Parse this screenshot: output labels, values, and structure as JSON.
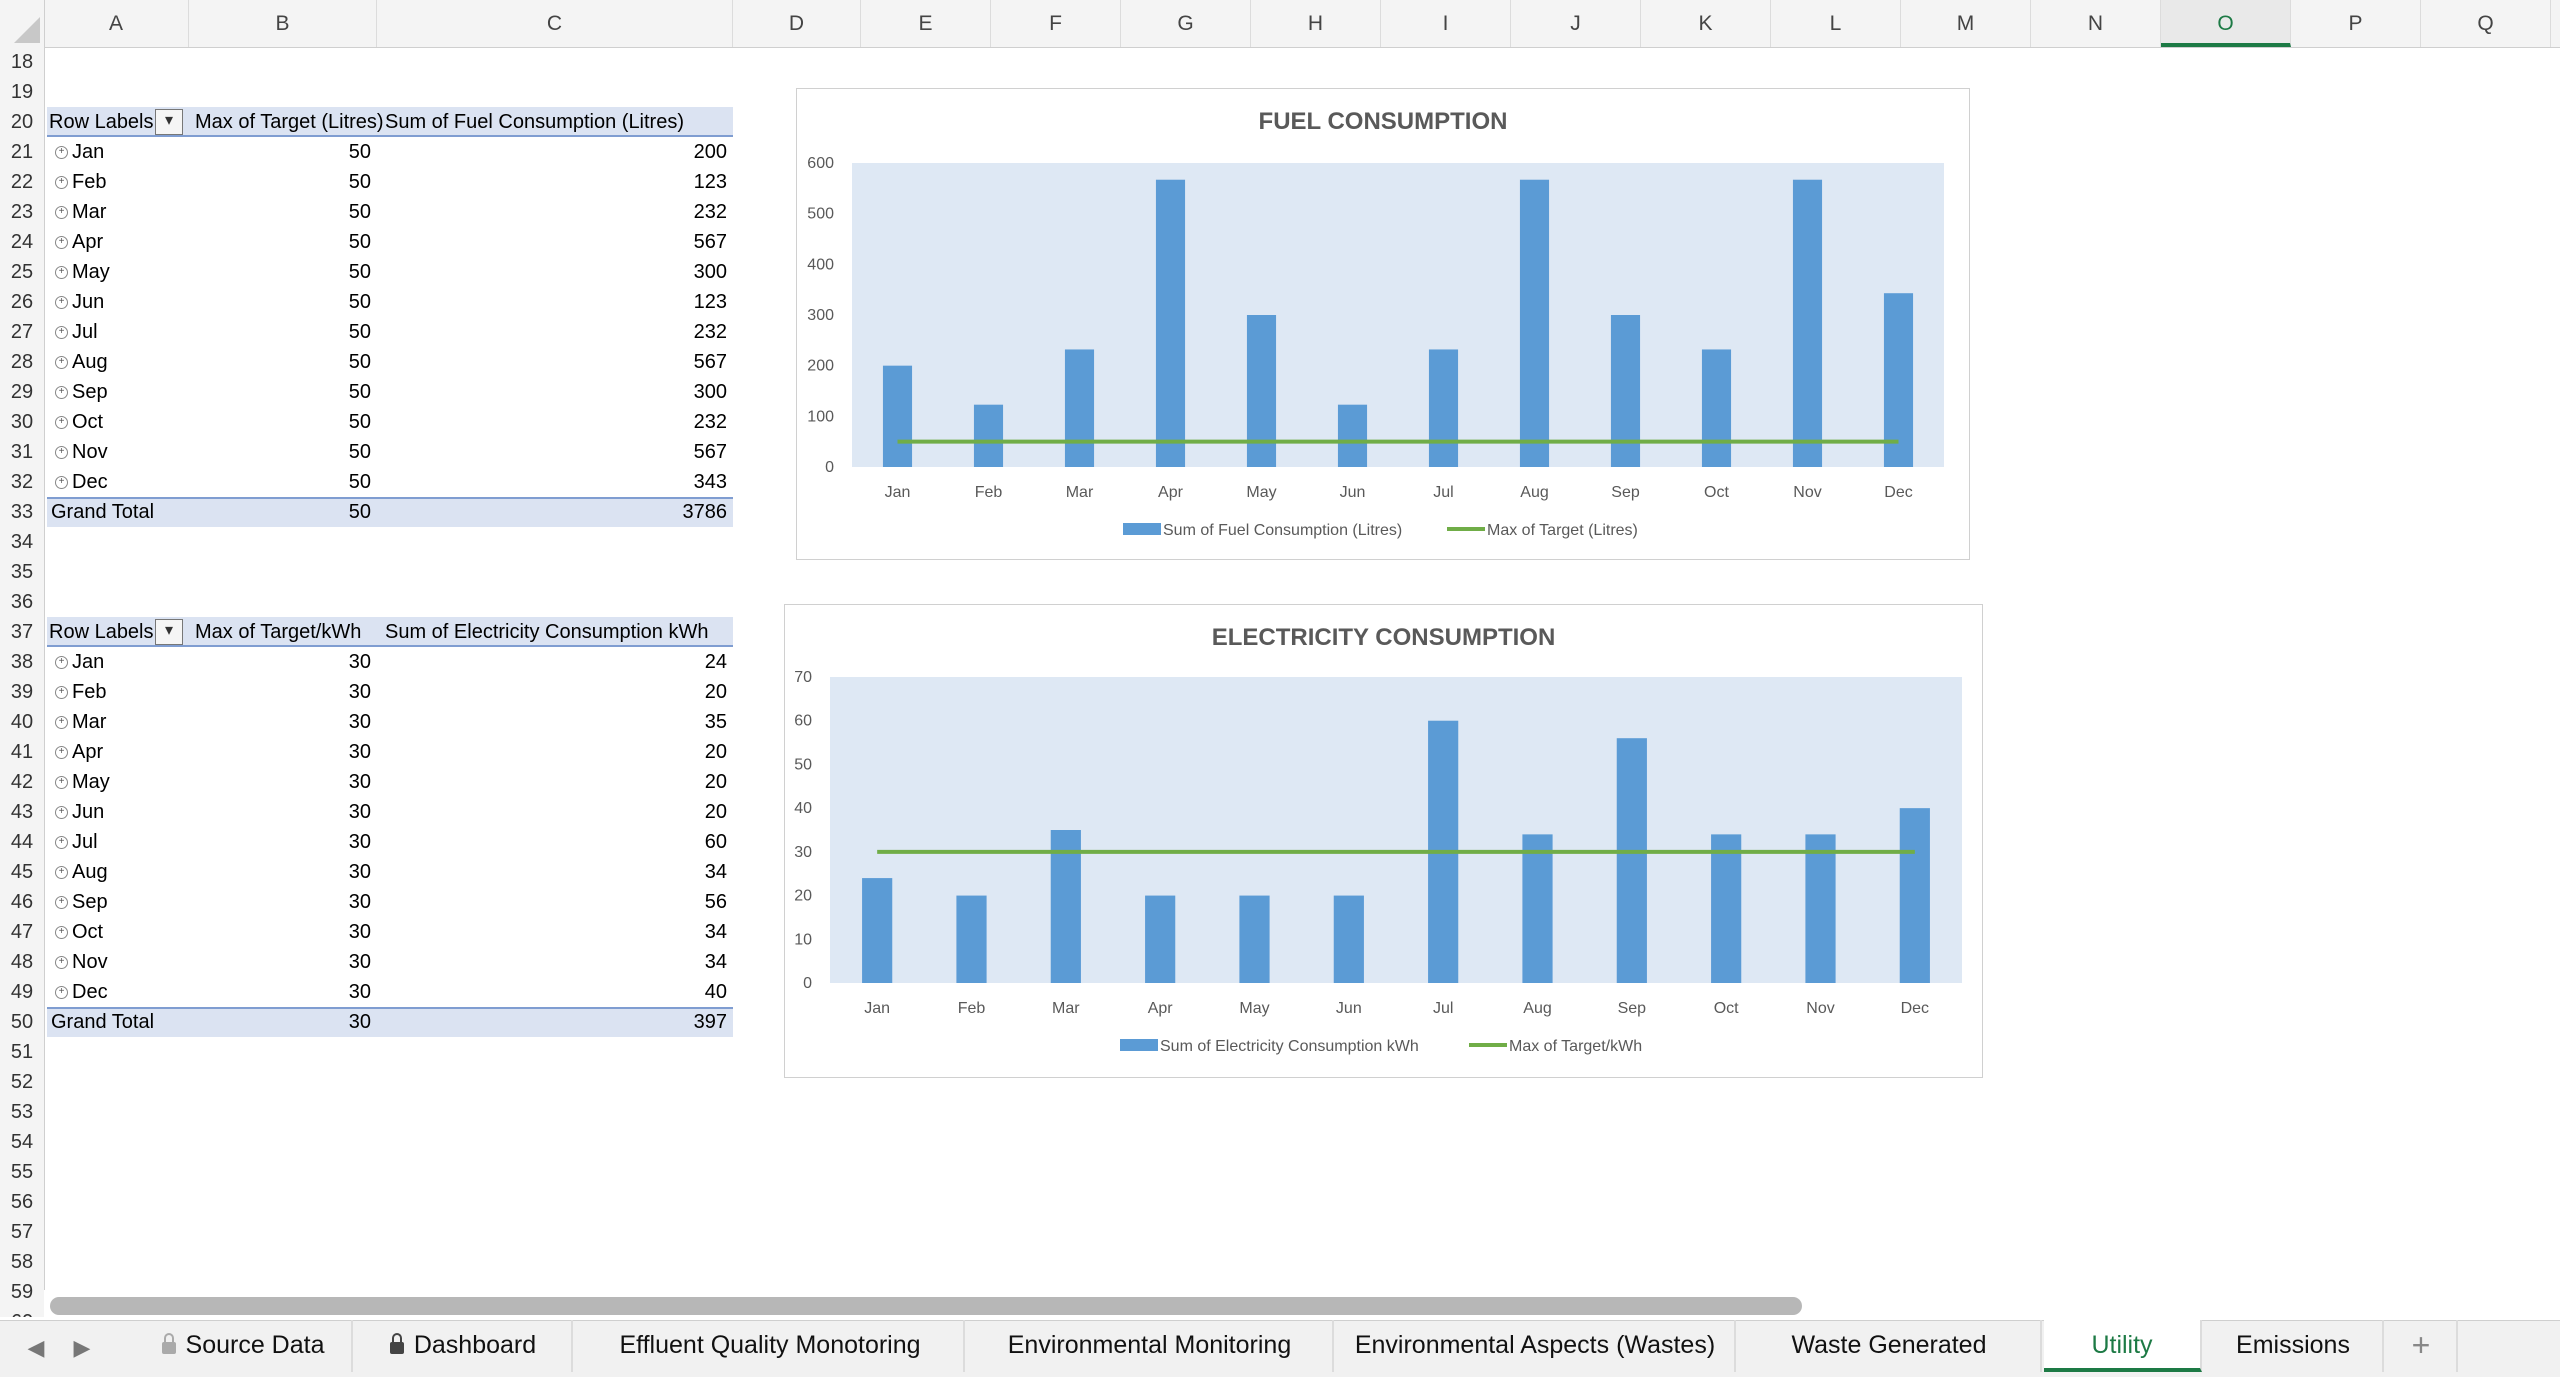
{
  "columns": [
    "A",
    "B",
    "C",
    "D",
    "E",
    "F",
    "G",
    "H",
    "I",
    "J",
    "K",
    "L",
    "M",
    "N",
    "O",
    "P",
    "Q"
  ],
  "active_column": "O",
  "rows": [
    "18",
    "19",
    "20",
    "21",
    "22",
    "23",
    "24",
    "25",
    "26",
    "27",
    "28",
    "29",
    "30",
    "31",
    "32",
    "33",
    "34",
    "35",
    "36",
    "37",
    "38",
    "39",
    "40",
    "41",
    "42",
    "43",
    "44",
    "45",
    "46",
    "47",
    "48",
    "49",
    "50",
    "51",
    "52",
    "53",
    "54",
    "55",
    "56",
    "57",
    "58",
    "59",
    "60"
  ],
  "fuel_pivot": {
    "header": [
      "Row Labels",
      "Max of Target (Litres)",
      "Sum of Fuel Consumption (Litres)"
    ],
    "rows": [
      {
        "label": "Jan",
        "target": "50",
        "value": "200"
      },
      {
        "label": "Feb",
        "target": "50",
        "value": "123"
      },
      {
        "label": "Mar",
        "target": "50",
        "value": "232"
      },
      {
        "label": "Apr",
        "target": "50",
        "value": "567"
      },
      {
        "label": "May",
        "target": "50",
        "value": "300"
      },
      {
        "label": "Jun",
        "target": "50",
        "value": "123"
      },
      {
        "label": "Jul",
        "target": "50",
        "value": "232"
      },
      {
        "label": "Aug",
        "target": "50",
        "value": "567"
      },
      {
        "label": "Sep",
        "target": "50",
        "value": "300"
      },
      {
        "label": "Oct",
        "target": "50",
        "value": "232"
      },
      {
        "label": "Nov",
        "target": "50",
        "value": "567"
      },
      {
        "label": "Dec",
        "target": "50",
        "value": "343"
      }
    ],
    "total": {
      "label": "Grand Total",
      "target": "50",
      "value": "3786"
    }
  },
  "elec_pivot": {
    "header": [
      "Row Labels",
      "Max of Target/kWh",
      "Sum of Electricity Consumption kWh"
    ],
    "rows": [
      {
        "label": "Jan",
        "target": "30",
        "value": "24"
      },
      {
        "label": "Feb",
        "target": "30",
        "value": "20"
      },
      {
        "label": "Mar",
        "target": "30",
        "value": "35"
      },
      {
        "label": "Apr",
        "target": "30",
        "value": "20"
      },
      {
        "label": "May",
        "target": "30",
        "value": "20"
      },
      {
        "label": "Jun",
        "target": "30",
        "value": "20"
      },
      {
        "label": "Jul",
        "target": "30",
        "value": "60"
      },
      {
        "label": "Aug",
        "target": "30",
        "value": "34"
      },
      {
        "label": "Sep",
        "target": "30",
        "value": "56"
      },
      {
        "label": "Oct",
        "target": "30",
        "value": "34"
      },
      {
        "label": "Nov",
        "target": "30",
        "value": "34"
      },
      {
        "label": "Dec",
        "target": "30",
        "value": "40"
      }
    ],
    "total": {
      "label": "Grand Total",
      "target": "30",
      "value": "397"
    }
  },
  "chart_data": [
    {
      "type": "bar",
      "title": "FUEL CONSUMPTION",
      "categories": [
        "Jan",
        "Feb",
        "Mar",
        "Apr",
        "May",
        "Jun",
        "Jul",
        "Aug",
        "Sep",
        "Oct",
        "Nov",
        "Dec"
      ],
      "series": [
        {
          "name": "Sum of Fuel Consumption (Litres)",
          "kind": "bar",
          "color": "#5b9bd5",
          "values": [
            200,
            123,
            232,
            567,
            300,
            123,
            232,
            567,
            300,
            232,
            567,
            343
          ]
        },
        {
          "name": "Max of Target (Litres)",
          "kind": "line",
          "color": "#70ad47",
          "values": [
            50,
            50,
            50,
            50,
            50,
            50,
            50,
            50,
            50,
            50,
            50,
            50
          ]
        }
      ],
      "ylim": [
        0,
        600
      ],
      "yticks": [
        "0",
        "100",
        "200",
        "300",
        "400",
        "500",
        "600"
      ],
      "grid": false,
      "legend": "bottom"
    },
    {
      "type": "bar",
      "title": "ELECTRICITY CONSUMPTION",
      "categories": [
        "Jan",
        "Feb",
        "Mar",
        "Apr",
        "May",
        "Jun",
        "Jul",
        "Aug",
        "Sep",
        "Oct",
        "Nov",
        "Dec"
      ],
      "series": [
        {
          "name": "Sum of Electricity Consumption kWh",
          "kind": "bar",
          "color": "#5b9bd5",
          "values": [
            24,
            20,
            35,
            20,
            20,
            20,
            60,
            34,
            56,
            34,
            34,
            40
          ]
        },
        {
          "name": "Max of Target/kWh",
          "kind": "line",
          "color": "#70ad47",
          "values": [
            30,
            30,
            30,
            30,
            30,
            30,
            30,
            30,
            30,
            30,
            30,
            30
          ]
        }
      ],
      "ylim": [
        0,
        70
      ],
      "yticks": [
        "0",
        "10",
        "20",
        "30",
        "40",
        "50",
        "60",
        "70"
      ],
      "grid": false,
      "legend": "bottom"
    }
  ],
  "tabs": [
    {
      "label": "Source Data",
      "locked": true,
      "lock_style": "grey"
    },
    {
      "label": "Dashboard",
      "locked": true,
      "lock_style": "dark"
    },
    {
      "label": "Effluent Quality Monotoring",
      "locked": false
    },
    {
      "label": "Environmental Monitoring",
      "locked": false
    },
    {
      "label": "Environmental Aspects (Wastes)",
      "locked": false
    },
    {
      "label": "Waste Generated",
      "locked": false
    },
    {
      "label": "Utility",
      "locked": false,
      "active": true
    },
    {
      "label": "Emissions",
      "locked": false
    }
  ],
  "tab_nav": {
    "prev": "◀",
    "next": "▶",
    "add": "+"
  },
  "plot_bg": "#dee8f4",
  "accent": "#1d7a45"
}
